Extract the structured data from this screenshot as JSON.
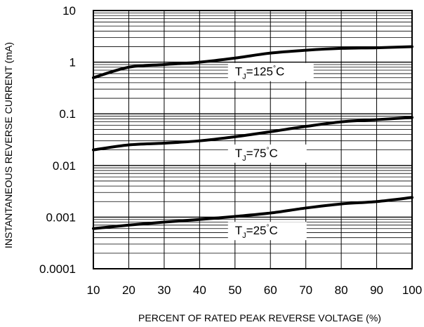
{
  "chart_data": {
    "type": "line",
    "xlabel": "PERCENT OF RATED PEAK REVERSE VOLTAGE (%)",
    "ylabel": "INSTANTANEOUS REVERSE CURRENT (mA)",
    "xlim": [
      10,
      100
    ],
    "ylim": [
      0.0001,
      10
    ],
    "yscale": "log",
    "grid": true,
    "x_ticks": [
      10,
      20,
      30,
      40,
      50,
      60,
      70,
      80,
      90,
      100
    ],
    "x_tick_labels": [
      "10",
      "20",
      "30",
      "40",
      "50",
      "60",
      "70",
      "80",
      "90",
      "100"
    ],
    "y_ticks": [
      0.0001,
      0.001,
      0.01,
      0.1,
      1,
      10
    ],
    "y_tick_labels": [
      "0.0001",
      "0.001",
      "0.01",
      "0.1",
      "1",
      "10"
    ],
    "x": [
      10,
      20,
      30,
      40,
      50,
      60,
      70,
      80,
      90,
      100
    ],
    "series": [
      {
        "label_main": "T",
        "label_sub": "J",
        "label_rest": "=125",
        "label_unit": "C",
        "values": [
          0.5,
          0.8,
          0.9,
          1.0,
          1.2,
          1.5,
          1.7,
          1.85,
          1.9,
          2.0
        ]
      },
      {
        "label_main": "T",
        "label_sub": "J",
        "label_rest": "=75",
        "label_unit": "C",
        "values": [
          0.02,
          0.025,
          0.027,
          0.03,
          0.036,
          0.045,
          0.057,
          0.07,
          0.077,
          0.085
        ]
      },
      {
        "label_main": "T",
        "label_sub": "J",
        "label_rest": "=25",
        "label_unit": "C",
        "values": [
          0.0006,
          0.0007,
          0.0008,
          0.0009,
          0.00103,
          0.0012,
          0.0015,
          0.0018,
          0.002,
          0.0024
        ]
      }
    ],
    "colors": {
      "line": "#000000",
      "grid": "#000000",
      "background": "#ffffff"
    }
  }
}
